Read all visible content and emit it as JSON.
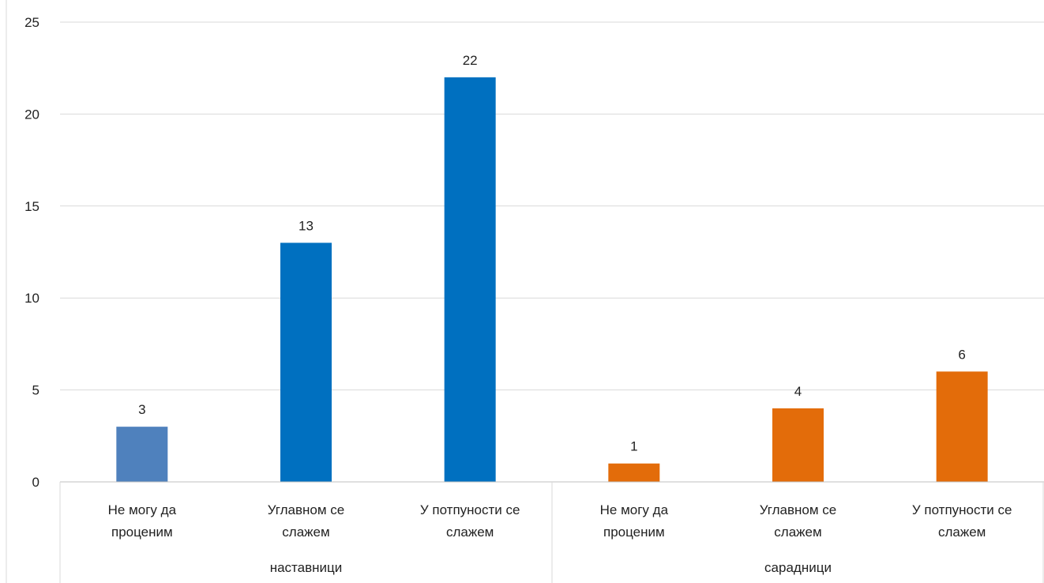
{
  "chart_data": {
    "type": "bar",
    "title": "",
    "xlabel": "",
    "ylabel": "",
    "ylim": [
      0,
      25
    ],
    "yticks": [
      0,
      5,
      10,
      15,
      20,
      25
    ],
    "grid": true,
    "legend": "none",
    "groups": [
      {
        "name": "наставници",
        "color": "#0070C0",
        "bars": [
          {
            "line1": "Не могу да",
            "line2": "проценим",
            "value": 3,
            "color": "#4F81BD"
          },
          {
            "line1": "Углавном се",
            "line2": "слажем",
            "value": 13,
            "color": "#0070C0"
          },
          {
            "line1": "У потпуности се",
            "line2": "слажем",
            "value": 22,
            "color": "#0070C0"
          }
        ]
      },
      {
        "name": "сарадници",
        "color": "#E36C0A",
        "bars": [
          {
            "line1": "Не могу да",
            "line2": "проценим",
            "value": 1,
            "color": "#E36C0A"
          },
          {
            "line1": "Углавном се",
            "line2": "слажем",
            "value": 4,
            "color": "#E36C0A"
          },
          {
            "line1": "У потпуности се",
            "line2": "слажем",
            "value": 6,
            "color": "#E36C0A"
          }
        ]
      }
    ]
  }
}
